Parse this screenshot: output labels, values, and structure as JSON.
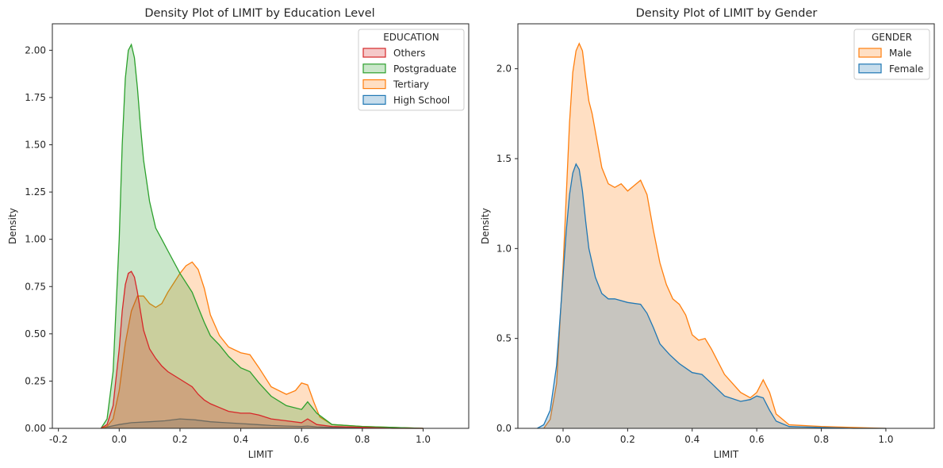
{
  "chart_data": [
    {
      "type": "area",
      "title": "Density Plot of LIMIT by Education Level",
      "xlabel": "LIMIT",
      "ylabel": "Density",
      "xlim": [
        -0.22,
        1.15
      ],
      "ylim": [
        0,
        2.14
      ],
      "xticks": [
        "-0.2",
        "0.0",
        "0.2",
        "0.4",
        "0.6",
        "0.8",
        "1.0"
      ],
      "xtick_values": [
        -0.2,
        0.0,
        0.2,
        0.4,
        0.6,
        0.8,
        1.0
      ],
      "yticks": [
        "0.00",
        "0.25",
        "0.50",
        "0.75",
        "1.00",
        "1.25",
        "1.50",
        "1.75",
        "2.00"
      ],
      "ytick_values": [
        0,
        0.25,
        0.5,
        0.75,
        1.0,
        1.25,
        1.5,
        1.75,
        2.0
      ],
      "grid": false,
      "legend": {
        "title": "EDUCATION",
        "placement": "top-right",
        "entries": [
          "Others",
          "Postgraduate",
          "Tertiary",
          "High School"
        ]
      },
      "series": [
        {
          "name": "Postgraduate",
          "color": "#2ca02c",
          "x": [
            -0.06,
            -0.04,
            -0.02,
            0.0,
            0.01,
            0.02,
            0.03,
            0.04,
            0.05,
            0.06,
            0.07,
            0.08,
            0.1,
            0.12,
            0.14,
            0.16,
            0.2,
            0.24,
            0.26,
            0.28,
            0.3,
            0.33,
            0.36,
            0.4,
            0.43,
            0.46,
            0.5,
            0.55,
            0.6,
            0.62,
            0.65,
            0.7,
            0.8,
            0.9,
            1.0
          ],
          "y": [
            0.0,
            0.05,
            0.3,
            1.0,
            1.5,
            1.85,
            2.0,
            2.03,
            1.96,
            1.8,
            1.6,
            1.42,
            1.2,
            1.06,
            1.0,
            0.94,
            0.82,
            0.72,
            0.64,
            0.56,
            0.49,
            0.44,
            0.38,
            0.32,
            0.3,
            0.24,
            0.17,
            0.12,
            0.1,
            0.14,
            0.08,
            0.02,
            0.01,
            0.005,
            0.0
          ]
        },
        {
          "name": "Tertiary",
          "color": "#ff7f0e",
          "x": [
            -0.06,
            -0.04,
            -0.02,
            0.0,
            0.02,
            0.04,
            0.06,
            0.08,
            0.1,
            0.12,
            0.14,
            0.16,
            0.18,
            0.2,
            0.22,
            0.24,
            0.26,
            0.28,
            0.3,
            0.33,
            0.36,
            0.4,
            0.43,
            0.46,
            0.5,
            0.55,
            0.58,
            0.6,
            0.62,
            0.64,
            0.66,
            0.7,
            0.8,
            0.9,
            1.0
          ],
          "y": [
            0.0,
            0.01,
            0.05,
            0.2,
            0.45,
            0.62,
            0.7,
            0.7,
            0.66,
            0.64,
            0.66,
            0.72,
            0.77,
            0.82,
            0.86,
            0.88,
            0.84,
            0.74,
            0.6,
            0.49,
            0.43,
            0.4,
            0.39,
            0.32,
            0.22,
            0.18,
            0.2,
            0.24,
            0.23,
            0.14,
            0.06,
            0.02,
            0.01,
            0.005,
            0.0
          ]
        },
        {
          "name": "Others",
          "color": "#d62728",
          "x": [
            -0.06,
            -0.04,
            -0.02,
            0.0,
            0.01,
            0.02,
            0.03,
            0.04,
            0.05,
            0.06,
            0.07,
            0.08,
            0.1,
            0.12,
            0.14,
            0.16,
            0.2,
            0.24,
            0.26,
            0.28,
            0.3,
            0.33,
            0.36,
            0.4,
            0.43,
            0.46,
            0.5,
            0.55,
            0.6,
            0.62,
            0.65,
            0.7,
            0.8,
            0.9,
            1.0
          ],
          "y": [
            0.0,
            0.02,
            0.12,
            0.42,
            0.62,
            0.76,
            0.82,
            0.83,
            0.8,
            0.72,
            0.62,
            0.52,
            0.42,
            0.37,
            0.33,
            0.3,
            0.26,
            0.22,
            0.18,
            0.15,
            0.13,
            0.11,
            0.09,
            0.08,
            0.08,
            0.07,
            0.05,
            0.04,
            0.03,
            0.05,
            0.02,
            0.01,
            0.005,
            0.0,
            0.0
          ]
        },
        {
          "name": "High School",
          "color": "#1f77b4",
          "x": [
            -0.06,
            0.0,
            0.04,
            0.1,
            0.15,
            0.2,
            0.25,
            0.3,
            0.35,
            0.4,
            0.45,
            0.5,
            0.55,
            0.6,
            0.62,
            0.65,
            0.7,
            0.8,
            0.9,
            1.0
          ],
          "y": [
            0.0,
            0.02,
            0.03,
            0.035,
            0.04,
            0.05,
            0.045,
            0.035,
            0.03,
            0.025,
            0.02,
            0.015,
            0.012,
            0.01,
            0.012,
            0.008,
            0.005,
            0.002,
            0.001,
            0.0
          ]
        }
      ]
    },
    {
      "type": "area",
      "title": "Density Plot of LIMIT by Gender",
      "xlabel": "LIMIT",
      "ylabel": "Density",
      "xlim": [
        -0.14,
        1.15
      ],
      "ylim": [
        0,
        2.25
      ],
      "xticks": [
        "0.0",
        "0.2",
        "0.4",
        "0.6",
        "0.8",
        "1.0"
      ],
      "xtick_values": [
        0.0,
        0.2,
        0.4,
        0.6,
        0.8,
        1.0
      ],
      "yticks": [
        "0.0",
        "0.5",
        "1.0",
        "1.5",
        "2.0"
      ],
      "ytick_values": [
        0,
        0.5,
        1.0,
        1.5,
        2.0
      ],
      "grid": false,
      "legend": {
        "title": "GENDER",
        "placement": "top-right",
        "entries": [
          "Male",
          "Female"
        ]
      },
      "series": [
        {
          "name": "Male",
          "color": "#ff7f0e",
          "x": [
            -0.06,
            -0.04,
            -0.02,
            0.0,
            0.02,
            0.03,
            0.04,
            0.05,
            0.06,
            0.07,
            0.08,
            0.09,
            0.1,
            0.12,
            0.14,
            0.16,
            0.18,
            0.2,
            0.22,
            0.24,
            0.26,
            0.28,
            0.3,
            0.32,
            0.34,
            0.36,
            0.38,
            0.4,
            0.42,
            0.44,
            0.46,
            0.5,
            0.55,
            0.58,
            0.6,
            0.62,
            0.64,
            0.66,
            0.7,
            0.8,
            0.9,
            1.0
          ],
          "y": [
            0.0,
            0.05,
            0.25,
            0.9,
            1.7,
            1.98,
            2.1,
            2.14,
            2.1,
            1.95,
            1.82,
            1.75,
            1.65,
            1.45,
            1.36,
            1.34,
            1.36,
            1.32,
            1.35,
            1.38,
            1.3,
            1.1,
            0.92,
            0.8,
            0.72,
            0.69,
            0.63,
            0.52,
            0.49,
            0.5,
            0.44,
            0.3,
            0.2,
            0.17,
            0.2,
            0.27,
            0.2,
            0.08,
            0.02,
            0.01,
            0.005,
            0.0
          ]
        },
        {
          "name": "Female",
          "color": "#1f77b4",
          "x": [
            -0.08,
            -0.06,
            -0.04,
            -0.02,
            0.0,
            0.01,
            0.02,
            0.03,
            0.04,
            0.05,
            0.06,
            0.07,
            0.08,
            0.1,
            0.12,
            0.14,
            0.16,
            0.2,
            0.24,
            0.26,
            0.28,
            0.3,
            0.33,
            0.36,
            0.4,
            0.43,
            0.46,
            0.5,
            0.55,
            0.58,
            0.6,
            0.62,
            0.64,
            0.66,
            0.7,
            0.8,
            0.9,
            1.0
          ],
          "y": [
            0.0,
            0.02,
            0.1,
            0.35,
            0.85,
            1.1,
            1.3,
            1.42,
            1.47,
            1.44,
            1.32,
            1.15,
            1.0,
            0.84,
            0.75,
            0.72,
            0.72,
            0.7,
            0.69,
            0.64,
            0.56,
            0.47,
            0.41,
            0.36,
            0.31,
            0.3,
            0.25,
            0.18,
            0.15,
            0.16,
            0.18,
            0.17,
            0.1,
            0.04,
            0.01,
            0.005,
            0.0,
            0.0
          ]
        }
      ]
    }
  ]
}
